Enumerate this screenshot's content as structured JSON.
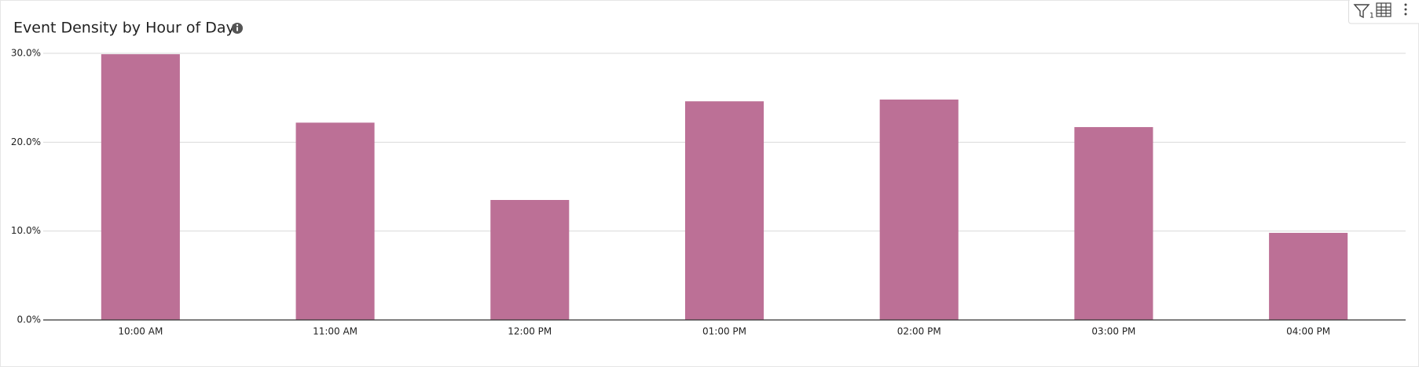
{
  "chart_data": {
    "type": "bar",
    "title": "Event Density by Hour of Day",
    "categories": [
      "10:00 AM",
      "11:00 AM",
      "12:00 PM",
      "01:00 PM",
      "02:00 PM",
      "03:00 PM",
      "04:00 PM"
    ],
    "values": [
      29.9,
      22.2,
      13.5,
      24.6,
      24.8,
      21.7,
      9.8
    ],
    "color": "#bc7096",
    "ylim": [
      0,
      30
    ],
    "yticks": [
      {
        "value": 0,
        "label": "0.0%"
      },
      {
        "value": 10,
        "label": "10.0%"
      },
      {
        "value": 20,
        "label": "20.0%"
      },
      {
        "value": 30,
        "label": "30.0%"
      }
    ],
    "grid": true
  },
  "toolbar": {
    "filter_count": "1"
  }
}
